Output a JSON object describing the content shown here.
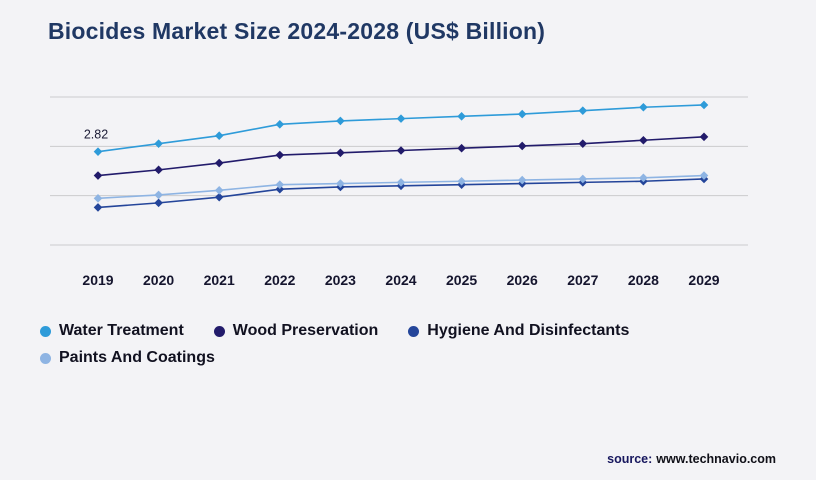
{
  "title": "Biocides Market Size 2024-2028 (US$ Billion)",
  "source": {
    "label": "source:",
    "value": "www.technavio.com"
  },
  "colors": {
    "background": "#f3f3f6",
    "title": "#203864",
    "grid": "#cbcbcd",
    "tick": "#15152e",
    "annotation": "#1b1b35"
  },
  "chart_data": {
    "type": "line",
    "title": "Biocides Market Size 2024-2028 (US$ Billion)",
    "x": [
      2019,
      2020,
      2021,
      2022,
      2023,
      2024,
      2025,
      2026,
      2027,
      2028,
      2029
    ],
    "xlabel": "",
    "ylabel": "",
    "ylim": [
      2.0,
      3.3
    ],
    "gridlines": 4,
    "grid": true,
    "legend_position": "bottom",
    "marker": "diamond",
    "annotations": [
      {
        "series": "Water Treatment",
        "x": 2019,
        "text": "2.82"
      }
    ],
    "series": [
      {
        "name": "Water Treatment",
        "color": "#2e9bd9",
        "values": [
          2.82,
          2.89,
          2.96,
          3.06,
          3.09,
          3.11,
          3.13,
          3.15,
          3.18,
          3.21,
          3.23
        ]
      },
      {
        "name": "Wood Preservation",
        "color": "#221b6b",
        "values": [
          2.61,
          2.66,
          2.72,
          2.79,
          2.81,
          2.83,
          2.85,
          2.87,
          2.89,
          2.92,
          2.95
        ]
      },
      {
        "name": "Hygiene And Disinfectants",
        "color": "#24459a",
        "values": [
          2.33,
          2.37,
          2.42,
          2.49,
          2.51,
          2.52,
          2.53,
          2.54,
          2.55,
          2.56,
          2.58
        ]
      },
      {
        "name": "Paints And Coatings",
        "color": "#8eb4e3",
        "values": [
          2.41,
          2.44,
          2.48,
          2.53,
          2.54,
          2.55,
          2.56,
          2.57,
          2.58,
          2.59,
          2.61
        ]
      }
    ]
  }
}
